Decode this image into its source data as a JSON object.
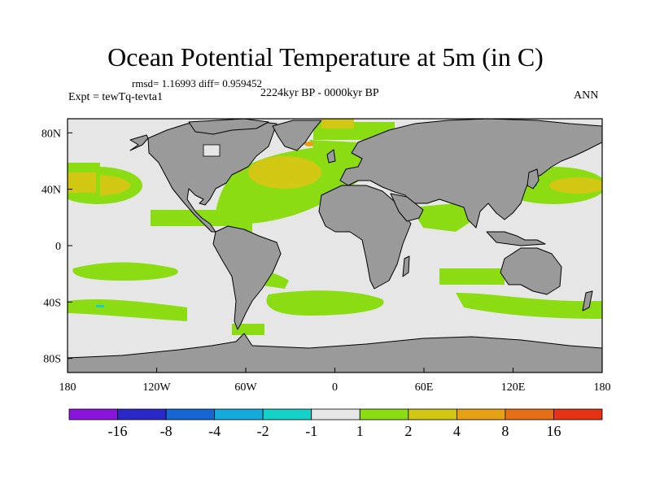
{
  "title": "Ocean Potential Temperature at 5m (in C)",
  "stats": "rmsd= 1.16993 diff= 0.959452",
  "experiment": "Expt = tewTq-tevta1",
  "period": "2224kyr BP - 0000kyr BP",
  "season": "ANN",
  "map": {
    "lat_range": [
      -90,
      90
    ],
    "lon_range": [
      -180,
      180
    ],
    "y_ticks": [
      {
        "label": "80N",
        "lat": 80
      },
      {
        "label": "40N",
        "lat": 40
      },
      {
        "label": "0",
        "lat": 0
      },
      {
        "label": "40S",
        "lat": -40
      },
      {
        "label": "80S",
        "lat": -80
      }
    ],
    "x_ticks": [
      {
        "label": "180",
        "lon": -180
      },
      {
        "label": "120W",
        "lon": -120
      },
      {
        "label": "60W",
        "lon": -60
      },
      {
        "label": "0",
        "lon": 0
      },
      {
        "label": "60E",
        "lon": 60
      },
      {
        "label": "120E",
        "lon": 120
      },
      {
        "label": "180",
        "lon": 180
      }
    ],
    "colors": {
      "land": "#9a9a9a",
      "ocean_neutral": "#e6e6e6"
    }
  },
  "colorbar": {
    "bins": [
      "#8a14dc",
      "#2a28c8",
      "#1466d2",
      "#14aadc",
      "#14d2c8",
      "#e6e6e6",
      "#8cdc14",
      "#d2c814",
      "#e6a014",
      "#e66e14",
      "#e63214"
    ],
    "labels": [
      "-16",
      "-8",
      "-4",
      "-2",
      "-1",
      "1",
      "2",
      "4",
      "8",
      "16"
    ]
  }
}
